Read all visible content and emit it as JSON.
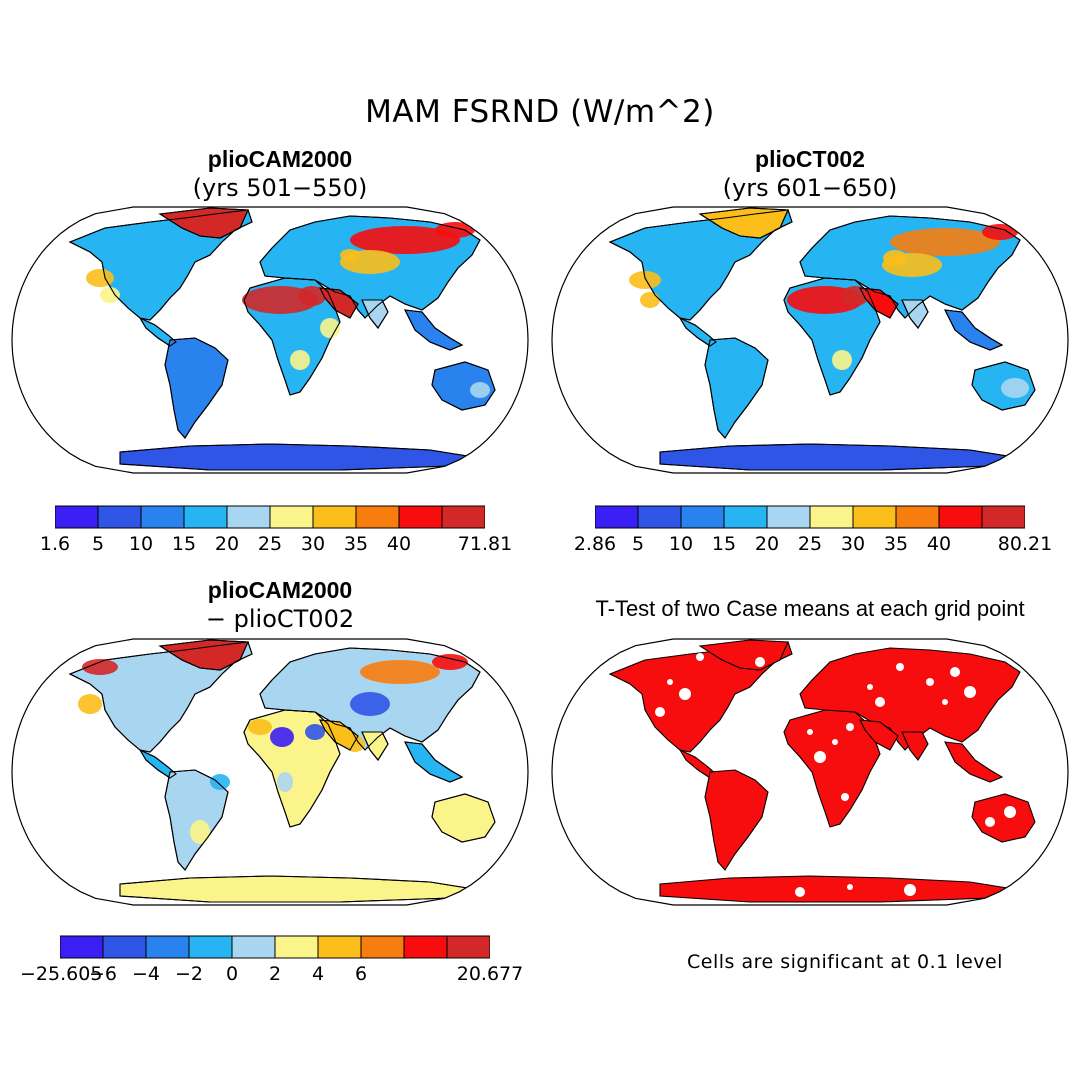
{
  "title": "MAM FSRND (W/m^2)",
  "panels": [
    {
      "id": "p1",
      "title": "plioCAM2000",
      "subtitle": "(yrs 501−550)",
      "cbar_labels": [
        "1.6",
        "5",
        "10",
        "15",
        "20",
        "25",
        "30",
        "35",
        "40",
        "71.81"
      ]
    },
    {
      "id": "p2",
      "title": "plioCT002",
      "subtitle": "(yrs 601−650)",
      "cbar_labels": [
        "2.86",
        "5",
        "10",
        "15",
        "20",
        "25",
        "30",
        "35",
        "40",
        "80.21"
      ]
    },
    {
      "id": "p3",
      "title": "plioCAM2000",
      "subtitle": "− plioCT002",
      "cbar_labels": [
        "−25.605",
        "−6",
        "−4",
        "−2",
        "0",
        "2",
        "4",
        "6",
        "20.677"
      ]
    },
    {
      "id": "p4",
      "title": "T-Test of two Case means at each grid point",
      "note": "Cells are significant at 0.1 level"
    }
  ],
  "colors": {
    "palette": [
      "#3a1ff5",
      "#2f55e6",
      "#2a82ee",
      "#27b4f2",
      "#a8d6f0",
      "#fbf48a",
      "#fbbe1a",
      "#f77d0e",
      "#f70d0d",
      "#d32828"
    ],
    "ocean": "#ffffff",
    "significant": "#f70d0d"
  }
}
